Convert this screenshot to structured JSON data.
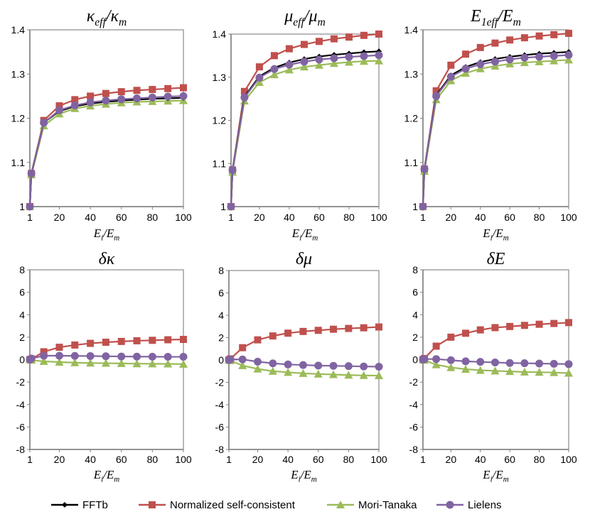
{
  "chart_data": [
    {
      "type": "line",
      "title": {
        "a": "κ",
        "a_sub": "eff",
        "sep": "/",
        "b": "κ",
        "b_sub": "m"
      },
      "xlabel": {
        "a": "E",
        "a_sub": "i",
        "sep": "/",
        "b": "E",
        "b_sub": "m"
      },
      "x": [
        1,
        2,
        10,
        20,
        30,
        40,
        50,
        60,
        70,
        80,
        90,
        100
      ],
      "xlim": [
        1,
        100
      ],
      "xticks": [
        "1",
        "20",
        "40",
        "60",
        "80",
        "100"
      ],
      "ylim": [
        1,
        1.4
      ],
      "yticks": [
        "1",
        "1.1",
        "1.2",
        "1.3",
        "1.4"
      ],
      "series": [
        {
          "name": "Normalized self-consistent",
          "values": [
            1,
            1.075,
            1.195,
            1.228,
            1.242,
            1.25,
            1.256,
            1.26,
            1.263,
            1.265,
            1.267,
            1.269
          ]
        },
        {
          "name": "Mori-Tanaka",
          "values": [
            1,
            1.072,
            1.183,
            1.21,
            1.222,
            1.228,
            1.232,
            1.235,
            1.237,
            1.238,
            1.239,
            1.24
          ]
        },
        {
          "name": "FFTb",
          "values": [
            1,
            1.075,
            1.19,
            1.216,
            1.227,
            1.233,
            1.237,
            1.24,
            1.242,
            1.244,
            1.245,
            1.246
          ]
        },
        {
          "name": "Lielens",
          "values": [
            1,
            1.075,
            1.19,
            1.218,
            1.229,
            1.236,
            1.24,
            1.243,
            1.245,
            1.247,
            1.249,
            1.25
          ]
        }
      ]
    },
    {
      "type": "line",
      "title": {
        "a": "μ",
        "a_sub": "eff",
        "sep": "/",
        "b": "μ",
        "b_sub": "m"
      },
      "xlabel": {
        "a": "E",
        "a_sub": "i",
        "sep": "/",
        "b": "E",
        "b_sub": "m"
      },
      "x": [
        1,
        2,
        10,
        20,
        30,
        40,
        50,
        60,
        70,
        80,
        90,
        100
      ],
      "xlim": [
        1,
        100
      ],
      "xticks": [
        "1",
        "20",
        "40",
        "60",
        "80",
        "100"
      ],
      "ylim": [
        1,
        1.4
      ],
      "yticks": [
        "1",
        "1.1",
        "1.2",
        "1.3",
        "1.4"
      ],
      "series": [
        {
          "name": "Normalized self-consistent",
          "values": [
            1,
            1.085,
            1.267,
            1.324,
            1.35,
            1.366,
            1.376,
            1.383,
            1.389,
            1.393,
            1.397,
            1.4
          ]
        },
        {
          "name": "Mori-Tanaka",
          "values": [
            1,
            1.08,
            1.245,
            1.288,
            1.306,
            1.317,
            1.324,
            1.328,
            1.332,
            1.335,
            1.337,
            1.338
          ]
        },
        {
          "name": "FFTb",
          "values": [
            1,
            1.085,
            1.255,
            1.302,
            1.322,
            1.334,
            1.342,
            1.348,
            1.352,
            1.355,
            1.358,
            1.36
          ]
        },
        {
          "name": "Lielens",
          "values": [
            1,
            1.085,
            1.253,
            1.299,
            1.319,
            1.329,
            1.336,
            1.341,
            1.344,
            1.347,
            1.349,
            1.351
          ]
        }
      ]
    },
    {
      "type": "line",
      "title": {
        "a": "E",
        "a_sub": "1eff",
        "sep": "/",
        "b": "E",
        "b_sub": "m"
      },
      "xlabel": {
        "a": "E",
        "a_sub": "i",
        "sep": "/",
        "b": "E",
        "b_sub": "m"
      },
      "x": [
        1,
        2,
        10,
        20,
        30,
        40,
        50,
        60,
        70,
        80,
        90,
        100
      ],
      "xlim": [
        1,
        100
      ],
      "xticks": [
        "1",
        "20",
        "40",
        "60",
        "80",
        "100"
      ],
      "ylim": [
        1,
        1.4
      ],
      "yticks": [
        "1",
        "1.1",
        "1.2",
        "1.3",
        "1.4"
      ],
      "series": [
        {
          "name": "Normalized self-consistent",
          "values": [
            1,
            1.085,
            1.262,
            1.32,
            1.345,
            1.36,
            1.37,
            1.377,
            1.382,
            1.386,
            1.389,
            1.392
          ]
        },
        {
          "name": "Mori-Tanaka",
          "values": [
            1,
            1.08,
            1.242,
            1.285,
            1.302,
            1.312,
            1.318,
            1.323,
            1.326,
            1.328,
            1.33,
            1.332
          ]
        },
        {
          "name": "FFTb",
          "values": [
            1,
            1.085,
            1.252,
            1.297,
            1.316,
            1.327,
            1.334,
            1.339,
            1.343,
            1.346,
            1.348,
            1.35
          ]
        },
        {
          "name": "Lielens",
          "values": [
            1,
            1.085,
            1.25,
            1.294,
            1.312,
            1.322,
            1.328,
            1.333,
            1.337,
            1.339,
            1.341,
            1.343
          ]
        }
      ]
    },
    {
      "type": "line",
      "title": {
        "a": "δκ",
        "a_sub": "",
        "sep": "",
        "b": "",
        "b_sub": ""
      },
      "xlabel": {
        "a": "E",
        "a_sub": "i",
        "sep": "/",
        "b": "E",
        "b_sub": "m"
      },
      "x": [
        1,
        2,
        10,
        20,
        30,
        40,
        50,
        60,
        70,
        80,
        90,
        100
      ],
      "xlim": [
        1,
        100
      ],
      "xticks": [
        "1",
        "20",
        "40",
        "60",
        "80",
        "100"
      ],
      "ylim": [
        -8,
        8
      ],
      "yticks": [
        "-8",
        "-6",
        "-4",
        "-2",
        "0",
        "2",
        "4",
        "6",
        "8"
      ],
      "series": [
        {
          "name": "Normalized self-consistent",
          "values": [
            0,
            0.05,
            0.7,
            1.1,
            1.3,
            1.45,
            1.55,
            1.62,
            1.68,
            1.72,
            1.77,
            1.8
          ]
        },
        {
          "name": "Mori-Tanaka",
          "values": [
            0,
            -0.05,
            -0.15,
            -0.22,
            -0.27,
            -0.3,
            -0.32,
            -0.34,
            -0.36,
            -0.37,
            -0.38,
            -0.4
          ]
        },
        {
          "name": "Lielens",
          "values": [
            0,
            0.1,
            0.35,
            0.35,
            0.33,
            0.32,
            0.3,
            0.28,
            0.27,
            0.26,
            0.25,
            0.25
          ]
        }
      ]
    },
    {
      "type": "line",
      "title": {
        "a": "δμ",
        "a_sub": "",
        "sep": "",
        "b": "",
        "b_sub": ""
      },
      "xlabel": {
        "a": "E",
        "a_sub": "i",
        "sep": "/",
        "b": "E",
        "b_sub": "m"
      },
      "x": [
        1,
        2,
        10,
        20,
        30,
        40,
        50,
        60,
        70,
        80,
        90,
        100
      ],
      "xlim": [
        1,
        100
      ],
      "xticks": [
        "1",
        "20",
        "40",
        "60",
        "80",
        "100"
      ],
      "ylim": [
        -8,
        8
      ],
      "yticks": [
        "-8",
        "-6",
        "-4",
        "-2",
        "0",
        "2",
        "4",
        "6",
        "8"
      ],
      "series": [
        {
          "name": "Normalized self-consistent",
          "values": [
            0,
            0.1,
            1.1,
            1.8,
            2.15,
            2.4,
            2.55,
            2.65,
            2.75,
            2.82,
            2.88,
            2.95
          ]
        },
        {
          "name": "Mori-Tanaka",
          "values": [
            0,
            -0.05,
            -0.5,
            -0.8,
            -1.0,
            -1.1,
            -1.2,
            -1.25,
            -1.3,
            -1.35,
            -1.38,
            -1.4
          ]
        },
        {
          "name": "Lielens",
          "values": [
            0,
            0.05,
            0.05,
            -0.15,
            -0.3,
            -0.4,
            -0.45,
            -0.5,
            -0.52,
            -0.55,
            -0.58,
            -0.6
          ]
        }
      ]
    },
    {
      "type": "line",
      "title": {
        "a": "δE",
        "a_sub": "",
        "sep": "",
        "b": "",
        "b_sub": ""
      },
      "xlabel": {
        "a": "E",
        "a_sub": "i",
        "sep": "/",
        "b": "E",
        "b_sub": "m"
      },
      "x": [
        1,
        2,
        10,
        20,
        30,
        40,
        50,
        60,
        70,
        80,
        90,
        100
      ],
      "xlim": [
        1,
        100
      ],
      "xticks": [
        "1",
        "20",
        "40",
        "60",
        "80",
        "100"
      ],
      "ylim": [
        -8,
        8
      ],
      "yticks": [
        "-8",
        "-6",
        "-4",
        "-2",
        "0",
        "2",
        "4",
        "6",
        "8"
      ],
      "series": [
        {
          "name": "Normalized self-consistent",
          "values": [
            0,
            0.1,
            1.2,
            2.0,
            2.35,
            2.65,
            2.85,
            2.95,
            3.05,
            3.15,
            3.22,
            3.3
          ]
        },
        {
          "name": "Mori-Tanaka",
          "values": [
            0,
            -0.05,
            -0.45,
            -0.7,
            -0.85,
            -0.95,
            -1.0,
            -1.05,
            -1.1,
            -1.12,
            -1.15,
            -1.2
          ]
        },
        {
          "name": "Lielens",
          "values": [
            0,
            0.05,
            0.05,
            -0.05,
            -0.15,
            -0.2,
            -0.25,
            -0.3,
            -0.32,
            -0.35,
            -0.37,
            -0.4
          ]
        }
      ]
    }
  ],
  "legend": {
    "placement": "bottom",
    "items": [
      {
        "name": "FFTb",
        "color": "#000000",
        "marker": "diamond"
      },
      {
        "name": "Normalized self-consistent",
        "color": "#c0504d",
        "marker": "square"
      },
      {
        "name": "Mori-Tanaka",
        "color": "#9bbb59",
        "marker": "triangle"
      },
      {
        "name": "Lielens",
        "color": "#8064a2",
        "marker": "circle"
      }
    ]
  }
}
